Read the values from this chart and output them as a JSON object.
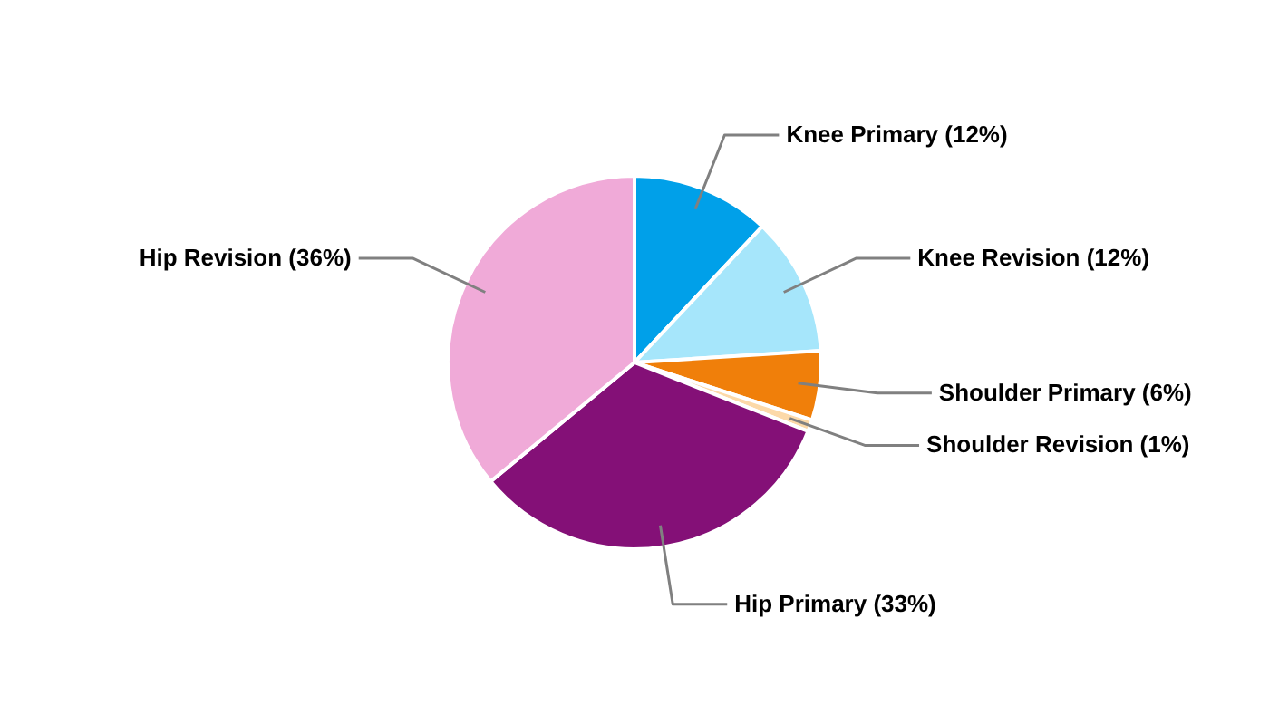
{
  "chart_data": {
    "type": "pie",
    "categories": [
      "Knee Primary (12%)",
      "Knee Revision (12%)",
      "Shoulder Primary (6%)",
      "Shoulder Revision (1%)",
      "Hip Primary (33%)",
      "Hip Revision (36%)"
    ],
    "values": [
      12,
      12,
      6,
      1,
      33,
      36
    ],
    "colors": [
      "#00a0e9",
      "#a6e6fb",
      "#f07f0a",
      "#fcd9a8",
      "#841077",
      "#f0aad8"
    ]
  }
}
